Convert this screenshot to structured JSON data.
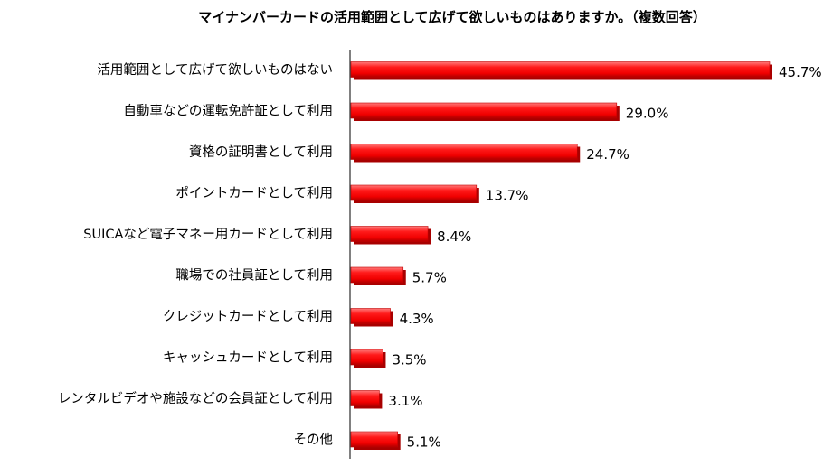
{
  "chart_data": {
    "type": "bar",
    "orientation": "horizontal",
    "title": "マイナンバーカードの活用範囲として広げて欲しいものはありますか。（複数回答）",
    "categories": [
      "活用範囲として広げて欲しいものはない",
      "自動車などの運転免許証として利用",
      "資格の証明書として利用",
      "ポイントカードとして利用",
      "SUICAなど電子マネー用カードとして利用",
      "職場での社員証として利用",
      "クレジットカードとして利用",
      "キャッシュカードとして利用",
      "レンタルビデオや施設などの会員証として利用",
      "その他"
    ],
    "values": [
      45.7,
      29.0,
      24.7,
      13.7,
      8.4,
      5.7,
      4.3,
      3.5,
      3.1,
      5.1
    ],
    "value_labels": [
      "45.7%",
      "29.0%",
      "24.7%",
      "13.7%",
      "8.4%",
      "5.7%",
      "4.3%",
      "3.5%",
      "3.1%",
      "5.1%"
    ],
    "xlim": [
      0,
      50
    ],
    "grid": false,
    "legend": "none",
    "bar_color": "#ff0000",
    "bar_shadow_color": "#a80000"
  }
}
